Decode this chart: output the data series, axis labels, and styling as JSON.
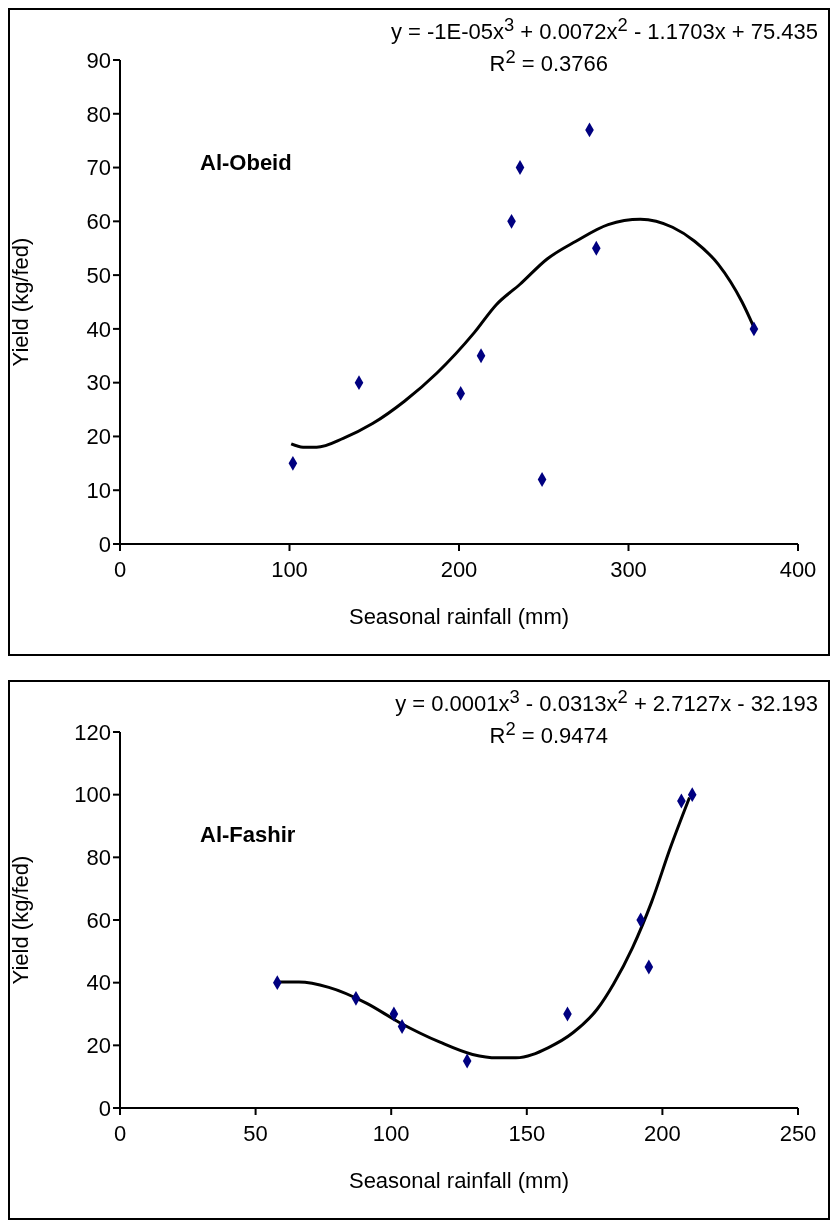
{
  "chart_data": [
    {
      "type": "scatter",
      "xlabel": "Seasonal rainfall (mm)",
      "ylabel": "Yield (kg/fed)",
      "annotations": [
        "y = -1E-05x$^{3}$ + 0.0072x$^{2}$ - 1.1703x + 75.435",
        "R$^{2}$ = 0.3766",
        "Al-Obeid"
      ],
      "xlim": [
        0,
        400
      ],
      "xticks": [
        0,
        100,
        200,
        300,
        400
      ],
      "ylim": [
        0,
        90
      ],
      "yticks": [
        0,
        10,
        20,
        30,
        40,
        50,
        60,
        70,
        80,
        90
      ],
      "marker": "diamond",
      "series": [
        {
          "color": "#000080",
          "x": [
            102,
            141,
            201,
            213,
            231,
            236,
            249,
            277,
            281,
            374
          ],
          "values": [
            15,
            30,
            28,
            35,
            60,
            70,
            12,
            77,
            55,
            40
          ]
        },
        {
          "type": "line",
          "marker": "none",
          "line_style": "solid",
          "color": "#000000",
          "x": [
            101,
            108,
            116,
            132,
            149,
            168,
            187,
            209,
            222,
            236,
            252,
            269,
            288,
            307,
            326,
            339,
            353,
            367,
            374
          ],
          "values": [
            18.6,
            18,
            18,
            19.7,
            22.4,
            26.6,
            31.8,
            39.3,
            44.5,
            48.3,
            53,
            56.3,
            59.4,
            60.4,
            58.9,
            56.3,
            52,
            45,
            40.3
          ]
        }
      ]
    },
    {
      "type": "scatter",
      "xlabel": "Seasonal rainfall (mm)",
      "ylabel": "Yield (kg/fed)",
      "annotations": [
        "y = 0.0001x$^{3}$ - 0.0313x$^{2}$ + 2.7127x - 32.193",
        "R$^{2}$ = 0.9474",
        "Al-Fashir"
      ],
      "xlim": [
        0,
        250
      ],
      "xticks": [
        0,
        50,
        100,
        150,
        200,
        250
      ],
      "ylim": [
        0,
        120
      ],
      "yticks": [
        0,
        20,
        40,
        60,
        80,
        100,
        120
      ],
      "marker": "diamond",
      "series": [
        {
          "color": "#000080",
          "x": [
            58,
            87,
            101,
            104,
            128,
            165,
            192,
            195,
            207,
            211
          ],
          "values": [
            40,
            35,
            30,
            26,
            15,
            30,
            60,
            45,
            98,
            100
          ]
        },
        {
          "type": "line",
          "marker": "none",
          "line_style": "solid",
          "color": "#000000",
          "x": [
            58,
            66,
            77,
            91,
            103,
            118,
            130,
            139,
            146,
            158,
            167,
            176,
            182,
            189,
            196,
            203,
            210
          ],
          "values": [
            40.2,
            40.2,
            38.5,
            33.4,
            27.3,
            21,
            17.1,
            16,
            16,
            19.3,
            24,
            31.6,
            39.6,
            51.2,
            65.7,
            83.2,
            99.1
          ]
        }
      ]
    }
  ]
}
